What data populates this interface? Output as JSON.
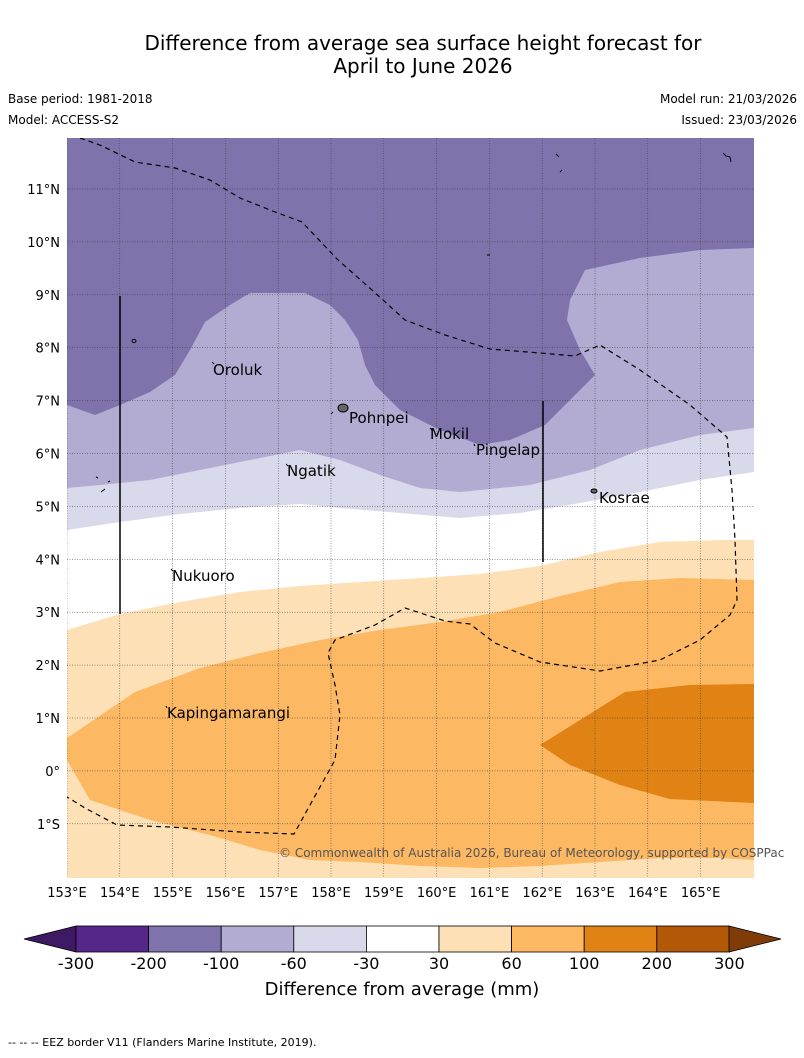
{
  "header": {
    "title_line1": "Difference from average sea surface height forecast for",
    "title_line2": "April to June 2026",
    "base_period": "Base period: 1981-2018",
    "model": "Model: ACCESS-S2",
    "model_run": "Model run: 21/03/2026",
    "issued": "Issued: 23/03/2026"
  },
  "map": {
    "lat_labels": [
      "11°N",
      "10°N",
      "9°N",
      "8°N",
      "7°N",
      "6°N",
      "5°N",
      "4°N",
      "3°N",
      "2°N",
      "1°N",
      "0°",
      "1°S"
    ],
    "lon_labels": [
      "153°E",
      "154°E",
      "155°E",
      "156°E",
      "157°E",
      "158°E",
      "159°E",
      "160°E",
      "161°E",
      "162°E",
      "163°E",
      "164°E",
      "165°E"
    ],
    "places": [
      {
        "name": "Oroluk"
      },
      {
        "name": "Pohnpei"
      },
      {
        "name": "Mokil"
      },
      {
        "name": "Pingelap"
      },
      {
        "name": "Ngatik"
      },
      {
        "name": "Kosrae"
      },
      {
        "name": "Nukuoro"
      },
      {
        "name": "Kapingamarangi"
      }
    ],
    "copyright": "© Commonwealth of Australia 2026, Bureau of Meteorology, supported by COSPPac"
  },
  "legend": {
    "title": "Difference from average (mm)",
    "ticks": [
      "-300",
      "-200",
      "-100",
      "-60",
      "-30",
      "30",
      "60",
      "100",
      "200",
      "300"
    ],
    "colors": [
      "#3d1a63",
      "#542788",
      "#8073ac",
      "#b2abd2",
      "#d8daeb",
      "#ffffff",
      "#fee0b6",
      "#fdb863",
      "#e08214",
      "#b35806",
      "#7f3b08"
    ]
  },
  "footer": {
    "eez_note": "--  --  -- EEZ border V11 (Flanders Marine Institute, 2019)."
  }
}
